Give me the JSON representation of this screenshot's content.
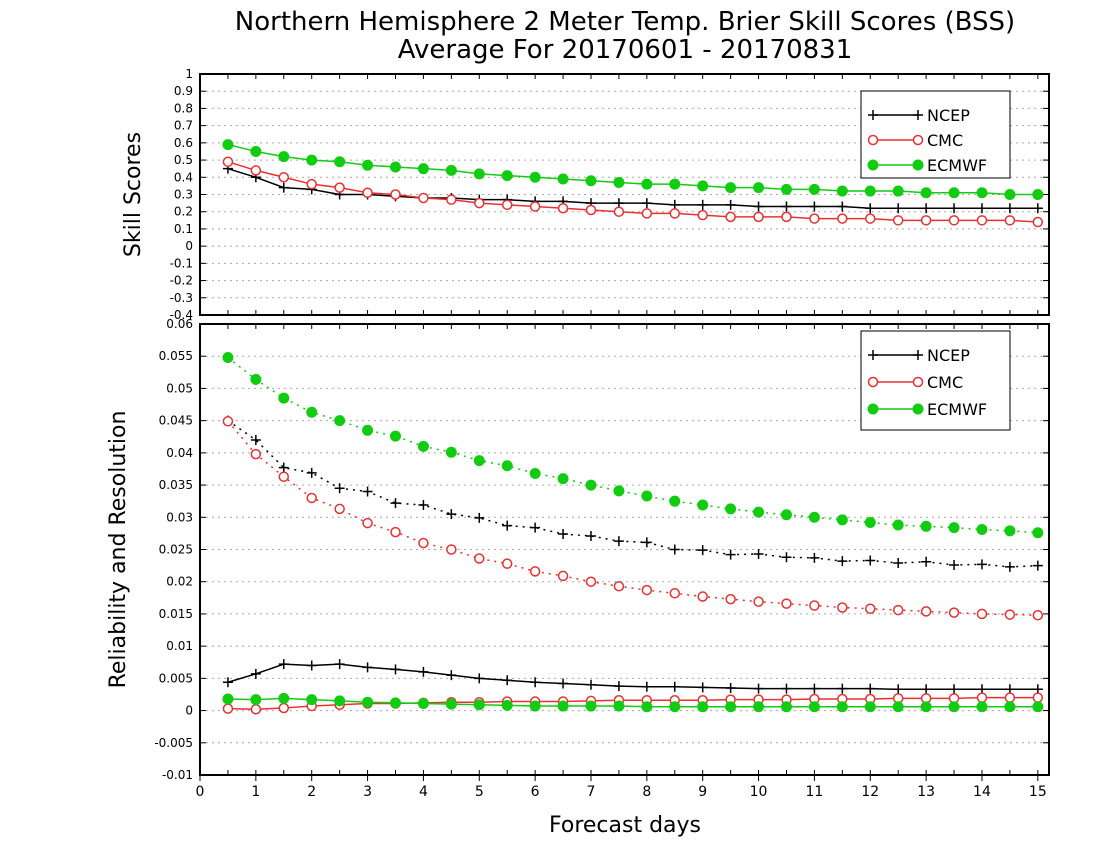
{
  "title": "Northern Hemisphere 2 Meter Temp. Brier Skill Scores (BSS)",
  "subtitle": "Average For 20170601 - 20170831",
  "xlabel": "Forecast days",
  "xticks": [
    "0",
    "1",
    "2",
    "3",
    "4",
    "5",
    "6",
    "7",
    "8",
    "9",
    "10",
    "11",
    "12",
    "13",
    "14",
    "15"
  ],
  "colors": {
    "NCEP": "#000000",
    "CMC": "#e83030",
    "ECMWF": "#11cc11"
  },
  "chart_data": [
    {
      "type": "line",
      "ylabel": "Skill Scores",
      "xlim": [
        0,
        15.2
      ],
      "ylim": [
        -0.4,
        1
      ],
      "yticks": [
        "-0.4",
        "-0.3",
        "-0.2",
        "-0.1",
        "0",
        "0.1",
        "0.2",
        "0.3",
        "0.4",
        "0.5",
        "0.6",
        "0.7",
        "0.8",
        "0.9",
        "1"
      ],
      "grid": true,
      "legend_position": "top-right",
      "x": [
        0.5,
        1,
        1.5,
        2,
        2.5,
        3,
        3.5,
        4,
        4.5,
        5,
        5.5,
        6,
        6.5,
        7,
        7.5,
        8,
        8.5,
        9,
        9.5,
        10,
        10.5,
        11,
        11.5,
        12,
        12.5,
        13,
        13.5,
        14,
        14.5,
        15
      ],
      "series": [
        {
          "name": "NCEP",
          "style": "solid",
          "marker": "plus",
          "values": [
            0.45,
            0.4,
            0.34,
            0.33,
            0.3,
            0.3,
            0.29,
            0.28,
            0.28,
            0.27,
            0.27,
            0.26,
            0.26,
            0.25,
            0.25,
            0.25,
            0.24,
            0.24,
            0.24,
            0.23,
            0.23,
            0.23,
            0.23,
            0.22,
            0.22,
            0.22,
            0.22,
            0.22,
            0.22,
            0.22
          ]
        },
        {
          "name": "CMC",
          "style": "solid",
          "marker": "open-circle",
          "values": [
            0.49,
            0.44,
            0.4,
            0.36,
            0.34,
            0.31,
            0.3,
            0.28,
            0.27,
            0.25,
            0.24,
            0.23,
            0.22,
            0.21,
            0.2,
            0.19,
            0.19,
            0.18,
            0.17,
            0.17,
            0.17,
            0.16,
            0.16,
            0.16,
            0.15,
            0.15,
            0.15,
            0.15,
            0.15,
            0.14
          ]
        },
        {
          "name": "ECMWF",
          "style": "solid",
          "marker": "filled-circle",
          "values": [
            0.59,
            0.55,
            0.52,
            0.5,
            0.49,
            0.47,
            0.46,
            0.45,
            0.44,
            0.42,
            0.41,
            0.4,
            0.39,
            0.38,
            0.37,
            0.36,
            0.36,
            0.35,
            0.34,
            0.34,
            0.33,
            0.33,
            0.32,
            0.32,
            0.32,
            0.31,
            0.31,
            0.31,
            0.3,
            0.3
          ]
        }
      ]
    },
    {
      "type": "line",
      "ylabel": "Reliability and Resolution",
      "xlim": [
        0,
        15.2
      ],
      "ylim": [
        -0.01,
        0.06
      ],
      "yticks": [
        "-0.01",
        "-0.005",
        "0",
        "0.005",
        "0.01",
        "0.015",
        "0.02",
        "0.025",
        "0.03",
        "0.035",
        "0.04",
        "0.045",
        "0.05",
        "0.055",
        "0.06"
      ],
      "grid": true,
      "legend_position": "top-right",
      "x": [
        0.5,
        1,
        1.5,
        2,
        2.5,
        3,
        3.5,
        4,
        4.5,
        5,
        5.5,
        6,
        6.5,
        7,
        7.5,
        8,
        8.5,
        9,
        9.5,
        10,
        10.5,
        11,
        11.5,
        12,
        12.5,
        13,
        13.5,
        14,
        14.5,
        15
      ],
      "series": [
        {
          "name": "NCEP",
          "style": "dotted",
          "marker": "plus",
          "values": [
            0.045,
            0.042,
            0.0377,
            0.0369,
            0.0345,
            0.034,
            0.0322,
            0.0319,
            0.0305,
            0.0299,
            0.0287,
            0.0284,
            0.0274,
            0.0271,
            0.0263,
            0.0261,
            0.025,
            0.0249,
            0.0242,
            0.0243,
            0.0238,
            0.0237,
            0.0232,
            0.0233,
            0.0229,
            0.0231,
            0.0226,
            0.0227,
            0.0223,
            0.0225
          ]
        },
        {
          "name": "CMC",
          "style": "dotted",
          "marker": "open-circle",
          "values": [
            0.0449,
            0.0398,
            0.0363,
            0.033,
            0.0313,
            0.0291,
            0.0277,
            0.026,
            0.025,
            0.0236,
            0.0228,
            0.0216,
            0.0209,
            0.02,
            0.0193,
            0.0187,
            0.0182,
            0.0177,
            0.0173,
            0.0169,
            0.0166,
            0.0163,
            0.016,
            0.0158,
            0.0156,
            0.0154,
            0.0152,
            0.015,
            0.0149,
            0.0148
          ]
        },
        {
          "name": "ECMWF",
          "style": "dotted",
          "marker": "filled-circle",
          "values": [
            0.0548,
            0.0514,
            0.0485,
            0.0463,
            0.045,
            0.0435,
            0.0426,
            0.041,
            0.0401,
            0.0388,
            0.038,
            0.0368,
            0.036,
            0.035,
            0.0341,
            0.0333,
            0.0325,
            0.0319,
            0.0313,
            0.0308,
            0.0304,
            0.03,
            0.0296,
            0.0292,
            0.0288,
            0.0286,
            0.0284,
            0.0281,
            0.0279,
            0.0276
          ]
        },
        {
          "name": "NCEP",
          "style": "solid",
          "marker": "plus",
          "in_legend": false,
          "values": [
            0.0044,
            0.0057,
            0.0072,
            0.007,
            0.0072,
            0.0067,
            0.0064,
            0.006,
            0.0055,
            0.005,
            0.0047,
            0.0044,
            0.0042,
            0.004,
            0.0038,
            0.0037,
            0.0037,
            0.0036,
            0.0035,
            0.0034,
            0.0034,
            0.0034,
            0.0034,
            0.0034,
            0.0033,
            0.0033,
            0.0033,
            0.0033,
            0.0033,
            0.0033
          ]
        },
        {
          "name": "CMC",
          "style": "solid",
          "marker": "open-circle",
          "in_legend": false,
          "values": [
            0.0003,
            0.0002,
            0.0004,
            0.0007,
            0.0009,
            0.0011,
            0.0011,
            0.0012,
            0.0013,
            0.0013,
            0.0014,
            0.0014,
            0.0014,
            0.0015,
            0.0016,
            0.0016,
            0.0016,
            0.0016,
            0.0017,
            0.0017,
            0.0017,
            0.0018,
            0.0018,
            0.0018,
            0.0019,
            0.0019,
            0.0019,
            0.002,
            0.002,
            0.002
          ]
        },
        {
          "name": "ECMWF",
          "style": "solid",
          "marker": "filled-circle",
          "in_legend": false,
          "values": [
            0.0018,
            0.0017,
            0.0019,
            0.0017,
            0.0015,
            0.0013,
            0.0012,
            0.0011,
            0.001,
            0.0009,
            0.0008,
            0.0007,
            0.0007,
            0.0007,
            0.0007,
            0.0006,
            0.0006,
            0.0006,
            0.0006,
            0.0006,
            0.0006,
            0.0006,
            0.0006,
            0.0006,
            0.0006,
            0.0006,
            0.0006,
            0.0006,
            0.0006,
            0.0006
          ]
        }
      ]
    }
  ]
}
